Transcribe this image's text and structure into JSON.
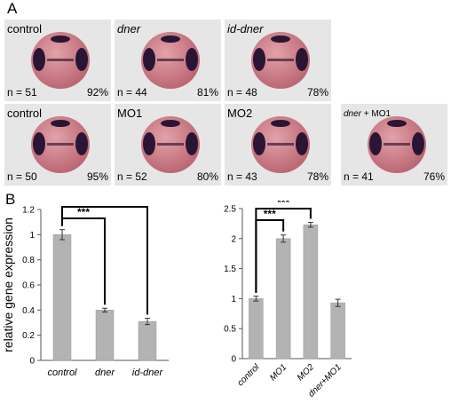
{
  "panel_a_label": "A",
  "panel_b_label": "B",
  "tiles": [
    {
      "label": "control",
      "italic": false,
      "n": "n = 51",
      "pct": "92%"
    },
    {
      "label": "dner",
      "italic": true,
      "n": "n = 44",
      "pct": "81%"
    },
    {
      "label": "id-dner",
      "italic": true,
      "n": "n = 48",
      "pct": "78%"
    },
    {
      "label": "control",
      "italic": false,
      "n": "n = 50",
      "pct": "95%"
    },
    {
      "label": "MO1",
      "italic": false,
      "n": "n = 52",
      "pct": "80%"
    },
    {
      "label": "MO2",
      "italic": false,
      "n": "n = 43",
      "pct": "78%"
    },
    {
      "label": "dner + MO1",
      "italic": false,
      "n": "n = 41",
      "pct": "76%"
    }
  ],
  "chart_data": [
    {
      "type": "bar",
      "ylabel": "relative gene expression",
      "categories": [
        "control",
        "dner",
        "id-dner"
      ],
      "values": [
        1.0,
        0.4,
        0.31
      ],
      "errors": [
        0.04,
        0.015,
        0.025
      ],
      "ylim": [
        0,
        1.2
      ],
      "yticks": [
        "0",
        "0.2",
        "0.4",
        "0.6",
        "0.8",
        "1",
        "1.2"
      ],
      "bar_color": "#b3b3b3",
      "significance": [
        {
          "from": "control",
          "to": "dner",
          "label": "***"
        },
        {
          "from": "control",
          "to": "id-dner",
          "label": "***"
        }
      ]
    },
    {
      "type": "bar",
      "ylabel": "relative gene expression",
      "categories": [
        "control",
        "MO1",
        "MO2",
        "dner+MO1"
      ],
      "values": [
        1.0,
        2.0,
        2.23,
        0.93
      ],
      "errors": [
        0.04,
        0.06,
        0.04,
        0.06
      ],
      "ylim": [
        0,
        2.5
      ],
      "yticks": [
        "0",
        "0.5",
        "1",
        "1.5",
        "2",
        "2.5"
      ],
      "bar_color": "#b3b3b3",
      "significance": [
        {
          "from": "control",
          "to": "MO1",
          "label": "***"
        },
        {
          "from": "control",
          "to": "MO2",
          "label": "***"
        }
      ]
    }
  ]
}
